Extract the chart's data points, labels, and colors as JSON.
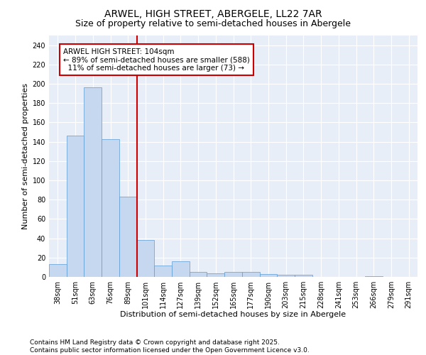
{
  "title_line1": "ARWEL, HIGH STREET, ABERGELE, LL22 7AR",
  "title_line2": "Size of property relative to semi-detached houses in Abergele",
  "xlabel": "Distribution of semi-detached houses by size in Abergele",
  "ylabel": "Number of semi-detached properties",
  "categories": [
    "38sqm",
    "51sqm",
    "63sqm",
    "76sqm",
    "89sqm",
    "101sqm",
    "114sqm",
    "127sqm",
    "139sqm",
    "152sqm",
    "165sqm",
    "177sqm",
    "190sqm",
    "203sqm",
    "215sqm",
    "228sqm",
    "241sqm",
    "253sqm",
    "266sqm",
    "279sqm",
    "291sqm"
  ],
  "values": [
    13,
    146,
    196,
    143,
    83,
    38,
    12,
    16,
    5,
    4,
    5,
    5,
    3,
    2,
    2,
    0,
    0,
    0,
    1,
    0,
    0
  ],
  "bar_color": "#c5d8f0",
  "bar_edge_color": "#5b9bd5",
  "vline_color": "#cc0000",
  "annotation_text": "ARWEL HIGH STREET: 104sqm\n← 89% of semi-detached houses are smaller (588)\n  11% of semi-detached houses are larger (73) →",
  "annotation_box_color": "#cc0000",
  "ylim": [
    0,
    250
  ],
  "yticks": [
    0,
    20,
    40,
    60,
    80,
    100,
    120,
    140,
    160,
    180,
    200,
    220,
    240
  ],
  "footnote": "Contains HM Land Registry data © Crown copyright and database right 2025.\nContains public sector information licensed under the Open Government Licence v3.0.",
  "bg_color": "#e8eef7",
  "grid_color": "#ffffff",
  "title_fontsize": 10,
  "subtitle_fontsize": 9,
  "axis_label_fontsize": 8,
  "tick_fontsize": 7,
  "annotation_fontsize": 7.5,
  "footnote_fontsize": 6.5
}
